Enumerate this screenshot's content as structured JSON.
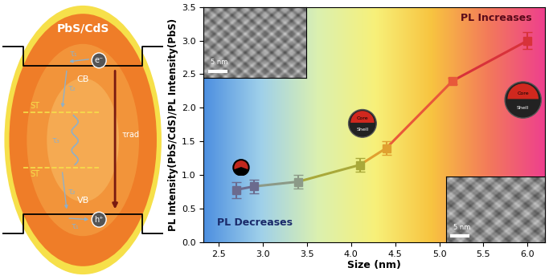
{
  "diagram": {
    "title": "PbS/CdS",
    "band_labels": [
      "CB",
      "VB"
    ],
    "carriers": [
      "e⁻",
      "h⁺"
    ],
    "trap_labels": [
      "ST",
      "ST"
    ],
    "lifetimes": [
      "τ₁",
      "τ₂",
      "τ₃",
      "τ₂",
      "τ₁",
      "τrad"
    ]
  },
  "chart_data": {
    "type": "line",
    "x_label": "Size (nm)",
    "y_label": "PL Intensity(PbS/CdS)/PL Intensity(PbS)",
    "x": [
      2.7,
      2.9,
      3.4,
      4.1,
      4.4,
      5.15,
      6.0
    ],
    "values": [
      0.78,
      0.83,
      0.9,
      1.15,
      1.4,
      2.4,
      3.0
    ],
    "errors": [
      0.12,
      0.1,
      0.1,
      0.1,
      0.1,
      0.05,
      0.13
    ],
    "colors": [
      "#6b6b8e",
      "#6b6b8e",
      "#8c9a88",
      "#a9a93a",
      "#e0a030",
      "#e8583a",
      "#d8323a"
    ],
    "marker": "square",
    "line_style": "solid",
    "xlim": [
      2.33,
      6.2
    ],
    "xticks": [
      {
        "value": 2.5,
        "label": "2.5"
      },
      {
        "value": 3.0,
        "label": "3.0"
      },
      {
        "value": 3.5,
        "label": "3.5"
      },
      {
        "value": 4.0,
        "label": "4.0"
      },
      {
        "value": 4.5,
        "label": "4.5"
      },
      {
        "value": 5.0,
        "label": "5.0"
      },
      {
        "value": 5.5,
        "label": "5.5"
      },
      {
        "value": 6.0,
        "label": "6.0"
      }
    ],
    "ylim": [
      0,
      3.5
    ],
    "yticks": [
      {
        "value": 0,
        "label": "0.0"
      },
      {
        "value": 0.5,
        "label": "0.5"
      },
      {
        "value": 1.0,
        "label": "1.0"
      },
      {
        "value": 1.5,
        "label": "1.5"
      },
      {
        "value": 2.0,
        "label": "2.0"
      },
      {
        "value": 2.5,
        "label": "2.5"
      },
      {
        "value": 3.0,
        "label": "3.0"
      },
      {
        "value": 3.5,
        "label": "3.5"
      }
    ],
    "annotations": [
      "PL Decreases",
      "PL Increases"
    ],
    "scale_bar_labels": [
      "5 nm",
      "5 nm"
    ],
    "icon_labels": [
      "Core",
      "Shell"
    ]
  }
}
